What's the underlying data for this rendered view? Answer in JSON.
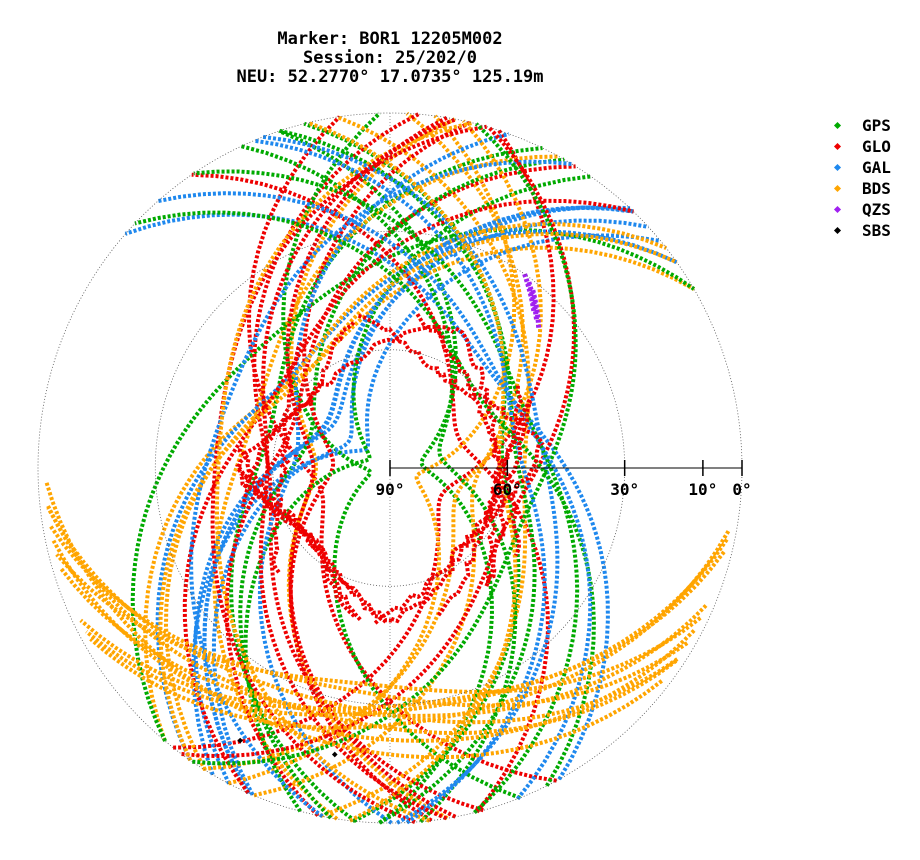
{
  "title": {
    "line1": "Marker: BOR1 12205M002",
    "line2": "Session: 25/202/0",
    "line3": "NEU: 52.2770° 17.0735° 125.19m"
  },
  "chart_data": {
    "type": "scatter",
    "title": "Marker: BOR1 12205M002 / Session: 25/202/0 / NEU: 52.2770° 17.0735° 125.19m",
    "xlabel": "",
    "ylabel": "",
    "projection": "polar skyplot (azimuth / elevation)",
    "elevation_tick_labels": [
      "90°",
      "60°",
      "30°",
      "10°",
      "0°"
    ],
    "elevation_ticks": [
      90,
      60,
      30,
      10,
      0
    ],
    "elevation_circles": [
      0,
      30,
      60
    ],
    "elevation_circle_style": "dotted",
    "legend_position": "right",
    "series": [
      {
        "name": "GPS",
        "color": "#00aa00",
        "marker": "diamond"
      },
      {
        "name": "GLO",
        "color": "#ee0000",
        "marker": "diamond"
      },
      {
        "name": "GAL",
        "color": "#1e88ee",
        "marker": "diamond"
      },
      {
        "name": "BDS",
        "color": "#ffa500",
        "marker": "diamond"
      },
      {
        "name": "QZS",
        "color": "#a020f0",
        "marker": "diamond"
      },
      {
        "name": "SBS",
        "color": "#000000",
        "marker": "diamond"
      }
    ],
    "sbs_points": [
      {
        "azimuth": 209,
        "elevation": 11
      },
      {
        "azimuth": 191,
        "elevation": 16
      }
    ]
  }
}
